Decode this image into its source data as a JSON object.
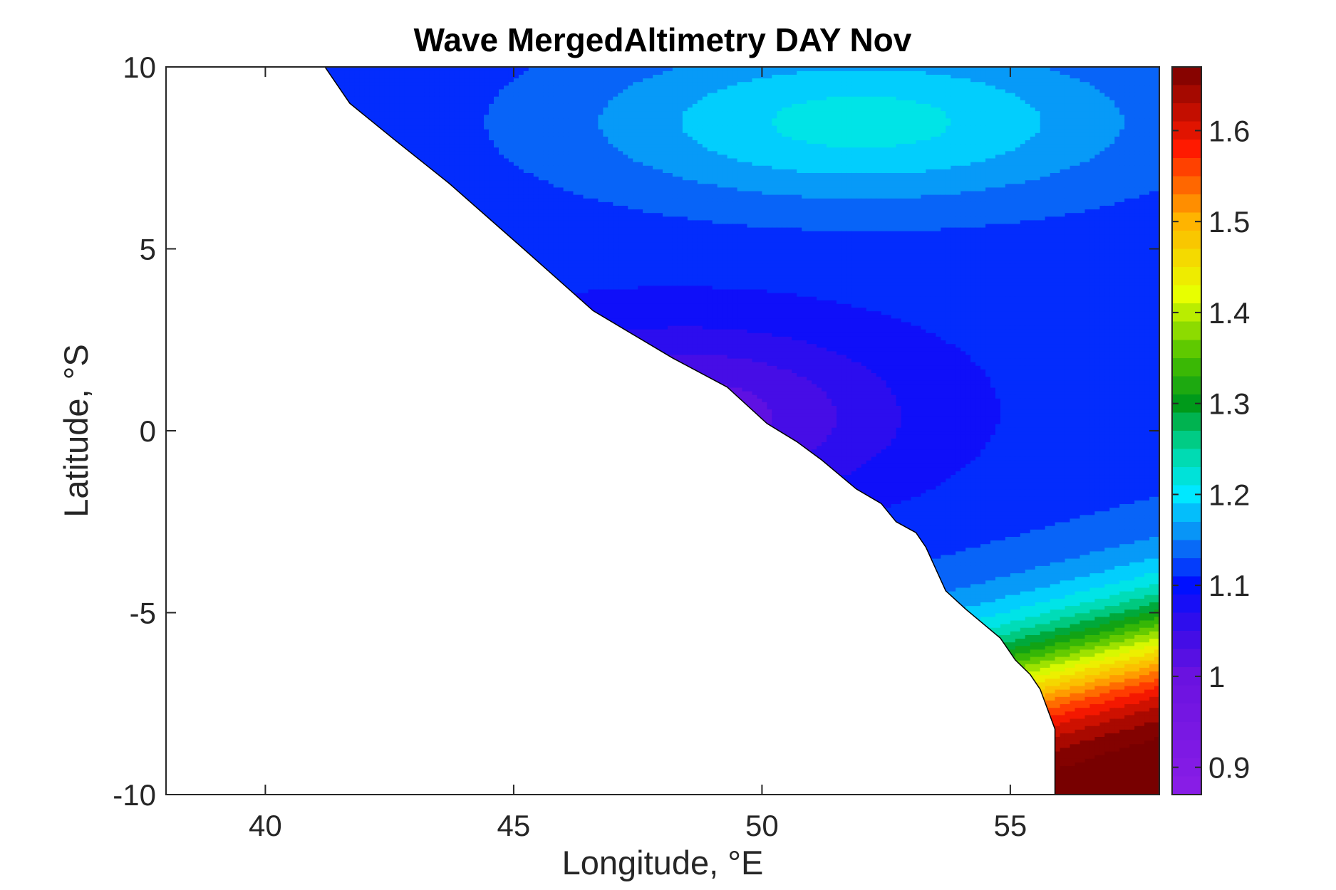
{
  "chart_data": {
    "type": "heatmap",
    "subtype": "filled-contour-map",
    "title": "Wave MergedAltimetry DAY Nov",
    "xlabel": "Longitude, °E",
    "ylabel": "Latitude, °S",
    "xlim": [
      38,
      58
    ],
    "ylim": [
      -10,
      10
    ],
    "xticks": [
      40,
      45,
      50,
      55
    ],
    "xtick_labels": [
      "40",
      "45",
      "50",
      "55"
    ],
    "yticks": [
      10,
      5,
      0,
      -5,
      -10
    ],
    "ytick_labels": [
      "10",
      "5",
      "0",
      "-5",
      "-10"
    ],
    "grid": false,
    "colorbar": {
      "range": [
        0.87,
        1.67
      ],
      "ticks": [
        1.6,
        1.5,
        1.4,
        1.3,
        1.2,
        1.1,
        1.0,
        0.9
      ],
      "tick_labels": [
        "1.6",
        "1.5",
        "1.4",
        "1.3",
        "1.2",
        "1.1",
        "1",
        "0.9"
      ],
      "colormap_stops": [
        {
          "v": 0.87,
          "c": "#8a1ee6"
        },
        {
          "v": 1.0,
          "c": "#6a12e0"
        },
        {
          "v": 1.05,
          "c": "#3a0ce8"
        },
        {
          "v": 1.1,
          "c": "#0010ff"
        },
        {
          "v": 1.15,
          "c": "#0a80f5"
        },
        {
          "v": 1.2,
          "c": "#00e8ff"
        },
        {
          "v": 1.25,
          "c": "#00d8a0"
        },
        {
          "v": 1.3,
          "c": "#009a1a"
        },
        {
          "v": 1.35,
          "c": "#48c000"
        },
        {
          "v": 1.42,
          "c": "#e8ff00"
        },
        {
          "v": 1.5,
          "c": "#ffb400"
        },
        {
          "v": 1.58,
          "c": "#ff1a00"
        },
        {
          "v": 1.67,
          "c": "#780000"
        }
      ]
    },
    "coastline": [
      [
        41.2,
        10
      ],
      [
        41.7,
        9.0
      ],
      [
        42.6,
        8.0
      ],
      [
        43.7,
        6.8
      ],
      [
        45.2,
        5.0
      ],
      [
        46.6,
        3.3
      ],
      [
        48.2,
        2.0
      ],
      [
        49.3,
        1.2
      ],
      [
        50.1,
        0.2
      ],
      [
        50.7,
        -0.3
      ],
      [
        51.2,
        -0.8
      ],
      [
        51.9,
        -1.6
      ],
      [
        52.4,
        -2.0
      ],
      [
        52.7,
        -2.5
      ],
      [
        53.1,
        -2.8
      ],
      [
        53.3,
        -3.2
      ],
      [
        53.7,
        -4.4
      ],
      [
        54.1,
        -4.9
      ],
      [
        54.8,
        -5.7
      ],
      [
        55.1,
        -6.3
      ],
      [
        55.4,
        -6.7
      ],
      [
        55.6,
        -7.1
      ],
      [
        55.9,
        -8.2
      ],
      [
        55.9,
        -10
      ],
      [
        38,
        -10
      ],
      [
        38,
        10
      ]
    ]
  }
}
